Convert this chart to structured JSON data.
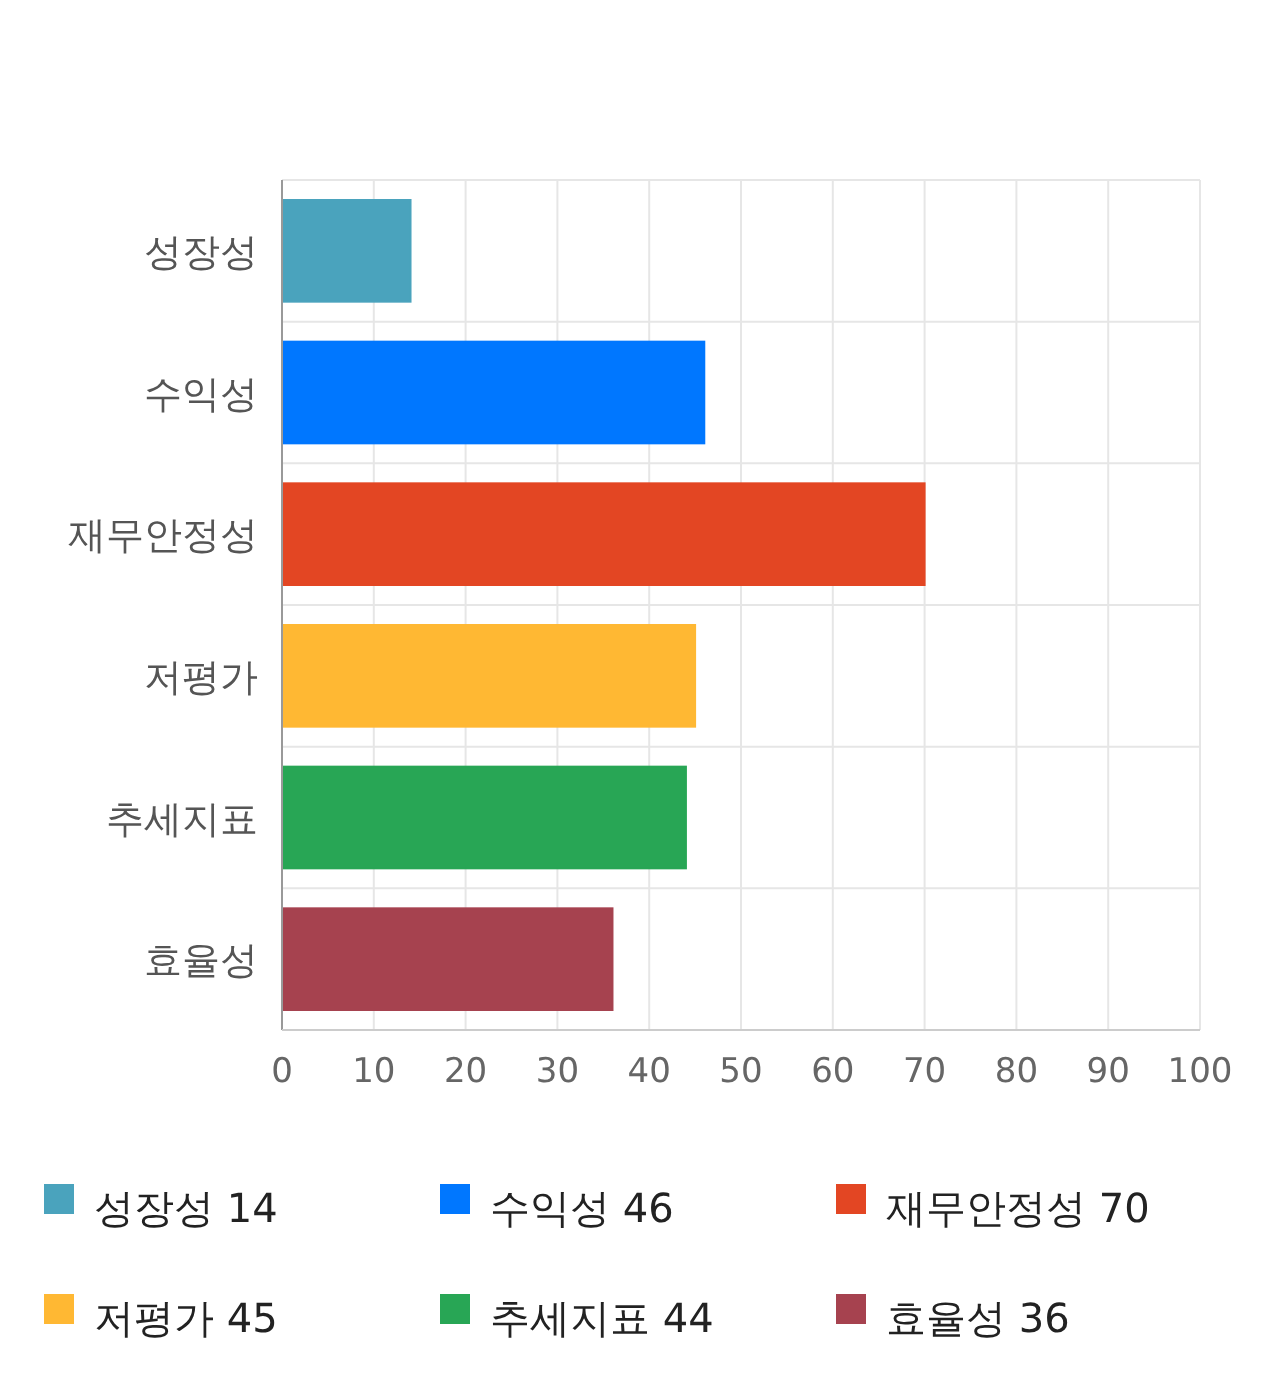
{
  "chart_data": {
    "type": "bar",
    "orientation": "horizontal",
    "stacked": true,
    "categories": [
      "성장성",
      "수익성",
      "재무안정성",
      "저평가",
      "추세지표",
      "효율성"
    ],
    "series": [
      {
        "name": "성장성 14",
        "color": "#4aa3bd",
        "values": [
          14,
          null,
          null,
          null,
          null,
          null
        ]
      },
      {
        "name": "수익성 46",
        "color": "#0077ff",
        "values": [
          null,
          46,
          null,
          null,
          null,
          null
        ]
      },
      {
        "name": "재무안정성 70",
        "color": "#e34623",
        "values": [
          null,
          null,
          70,
          null,
          null,
          null
        ]
      },
      {
        "name": "저평가 45",
        "color": "#ffb833",
        "values": [
          null,
          null,
          null,
          45,
          null,
          null
        ]
      },
      {
        "name": "추세지표 44",
        "color": "#28a655",
        "values": [
          null,
          null,
          null,
          null,
          44,
          null
        ]
      },
      {
        "name": "효율성 36",
        "color": "#a6424f",
        "values": [
          null,
          null,
          null,
          null,
          null,
          36
        ]
      }
    ],
    "xlim": [
      0,
      100
    ],
    "xticks": [
      0,
      10,
      20,
      30,
      40,
      50,
      60,
      70,
      80,
      90,
      100
    ],
    "grid": true,
    "legend": "bottom"
  }
}
